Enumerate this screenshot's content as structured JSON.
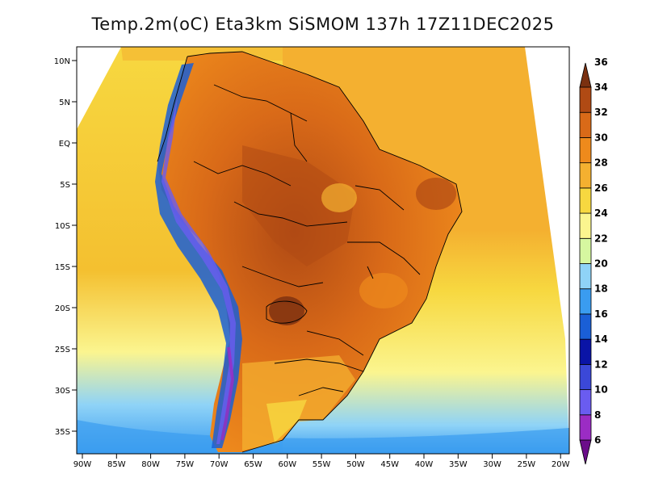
{
  "title": "Temp.2m(oC) Eta3km SiSMOM 137h 17Z11DEC2025",
  "lat_ticks": [
    "10N",
    "5N",
    "EQ",
    "5S",
    "10S",
    "15S",
    "20S",
    "25S",
    "30S",
    "35S"
  ],
  "lon_ticks": [
    "90W",
    "85W",
    "80W",
    "75W",
    "70W",
    "65W",
    "60W",
    "55W",
    "50W",
    "45W",
    "40W",
    "35W",
    "30W",
    "25W",
    "20W"
  ],
  "colorbar": {
    "levels": [
      "6",
      "8",
      "10",
      "12",
      "14",
      "16",
      "18",
      "20",
      "22",
      "24",
      "26",
      "28",
      "30",
      "32",
      "34",
      "36"
    ],
    "colors": [
      "#6b0d8a",
      "#9b2cc4",
      "#6a5cf0",
      "#3b48d8",
      "#0a14a6",
      "#1a5fd6",
      "#3a9cf0",
      "#8fd3f7",
      "#d6f7a0",
      "#fbf58f",
      "#f7d840",
      "#f4b030",
      "#ee8a1c",
      "#d96a18",
      "#b04a14",
      "#7a3010"
    ]
  }
}
